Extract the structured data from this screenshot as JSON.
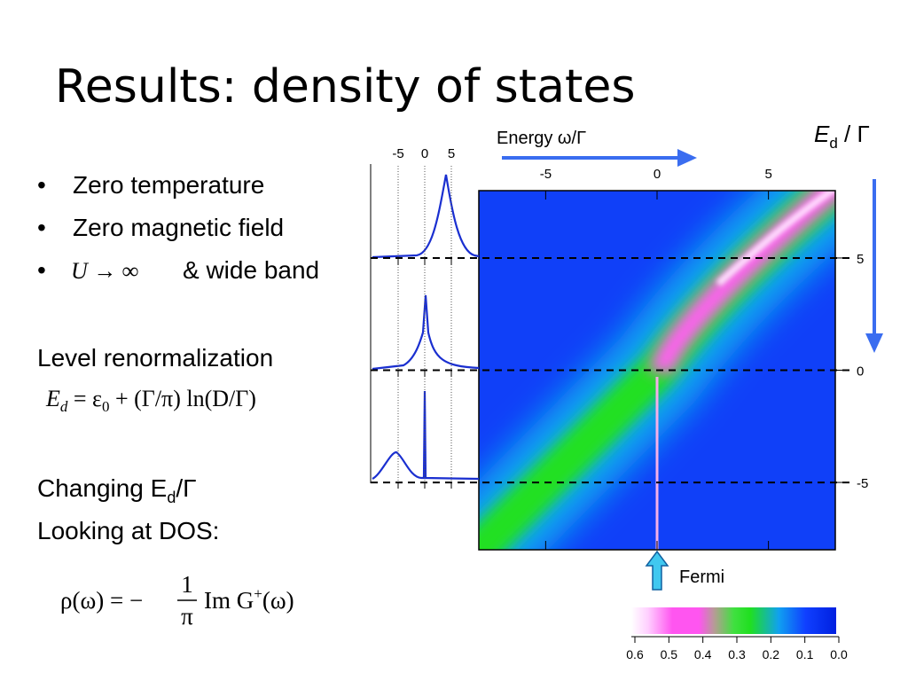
{
  "title": "Results: density of states",
  "bullet_symbol": "•",
  "bullets": [
    "Zero temperature",
    "Zero magnetic field"
  ],
  "bullet3": {
    "math": "U → ∞",
    "text": "& wide band"
  },
  "level": {
    "heading": "Level renormalization",
    "formula": [
      "E",
      "d",
      " = ε",
      "0",
      " + (Γ/π) ln(D/Γ)"
    ]
  },
  "changing": [
    "Changing E",
    "d",
    "/Γ"
  ],
  "looking": "Looking at DOS:",
  "dos_formula": {
    "lhs": "ρ(ω) = −",
    "num": "1",
    "den": "π",
    "rhs": "Im G",
    "sup": "+",
    "tail": "(ω)"
  },
  "heatmap": {
    "x_label": "Energy ω/Γ",
    "y_label": [
      "E",
      "d",
      " / Γ"
    ],
    "xlim": [
      -8,
      8
    ],
    "ylim": [
      -8,
      8
    ],
    "xticks": [
      -5,
      0,
      5
    ],
    "yticks": [
      5,
      0,
      -5
    ],
    "fermi_label": "Fermi"
  },
  "dos_panels": {
    "xlim": [
      -10,
      10
    ],
    "xticks": [
      -5,
      0,
      5
    ]
  },
  "colorbar": {
    "lim": [
      0.6,
      0
    ],
    "ticks": [
      0.6,
      0.5,
      0.4,
      0.3,
      0.2,
      0.1,
      {
        "value": 0,
        "label": "0.0"
      }
    ]
  }
}
